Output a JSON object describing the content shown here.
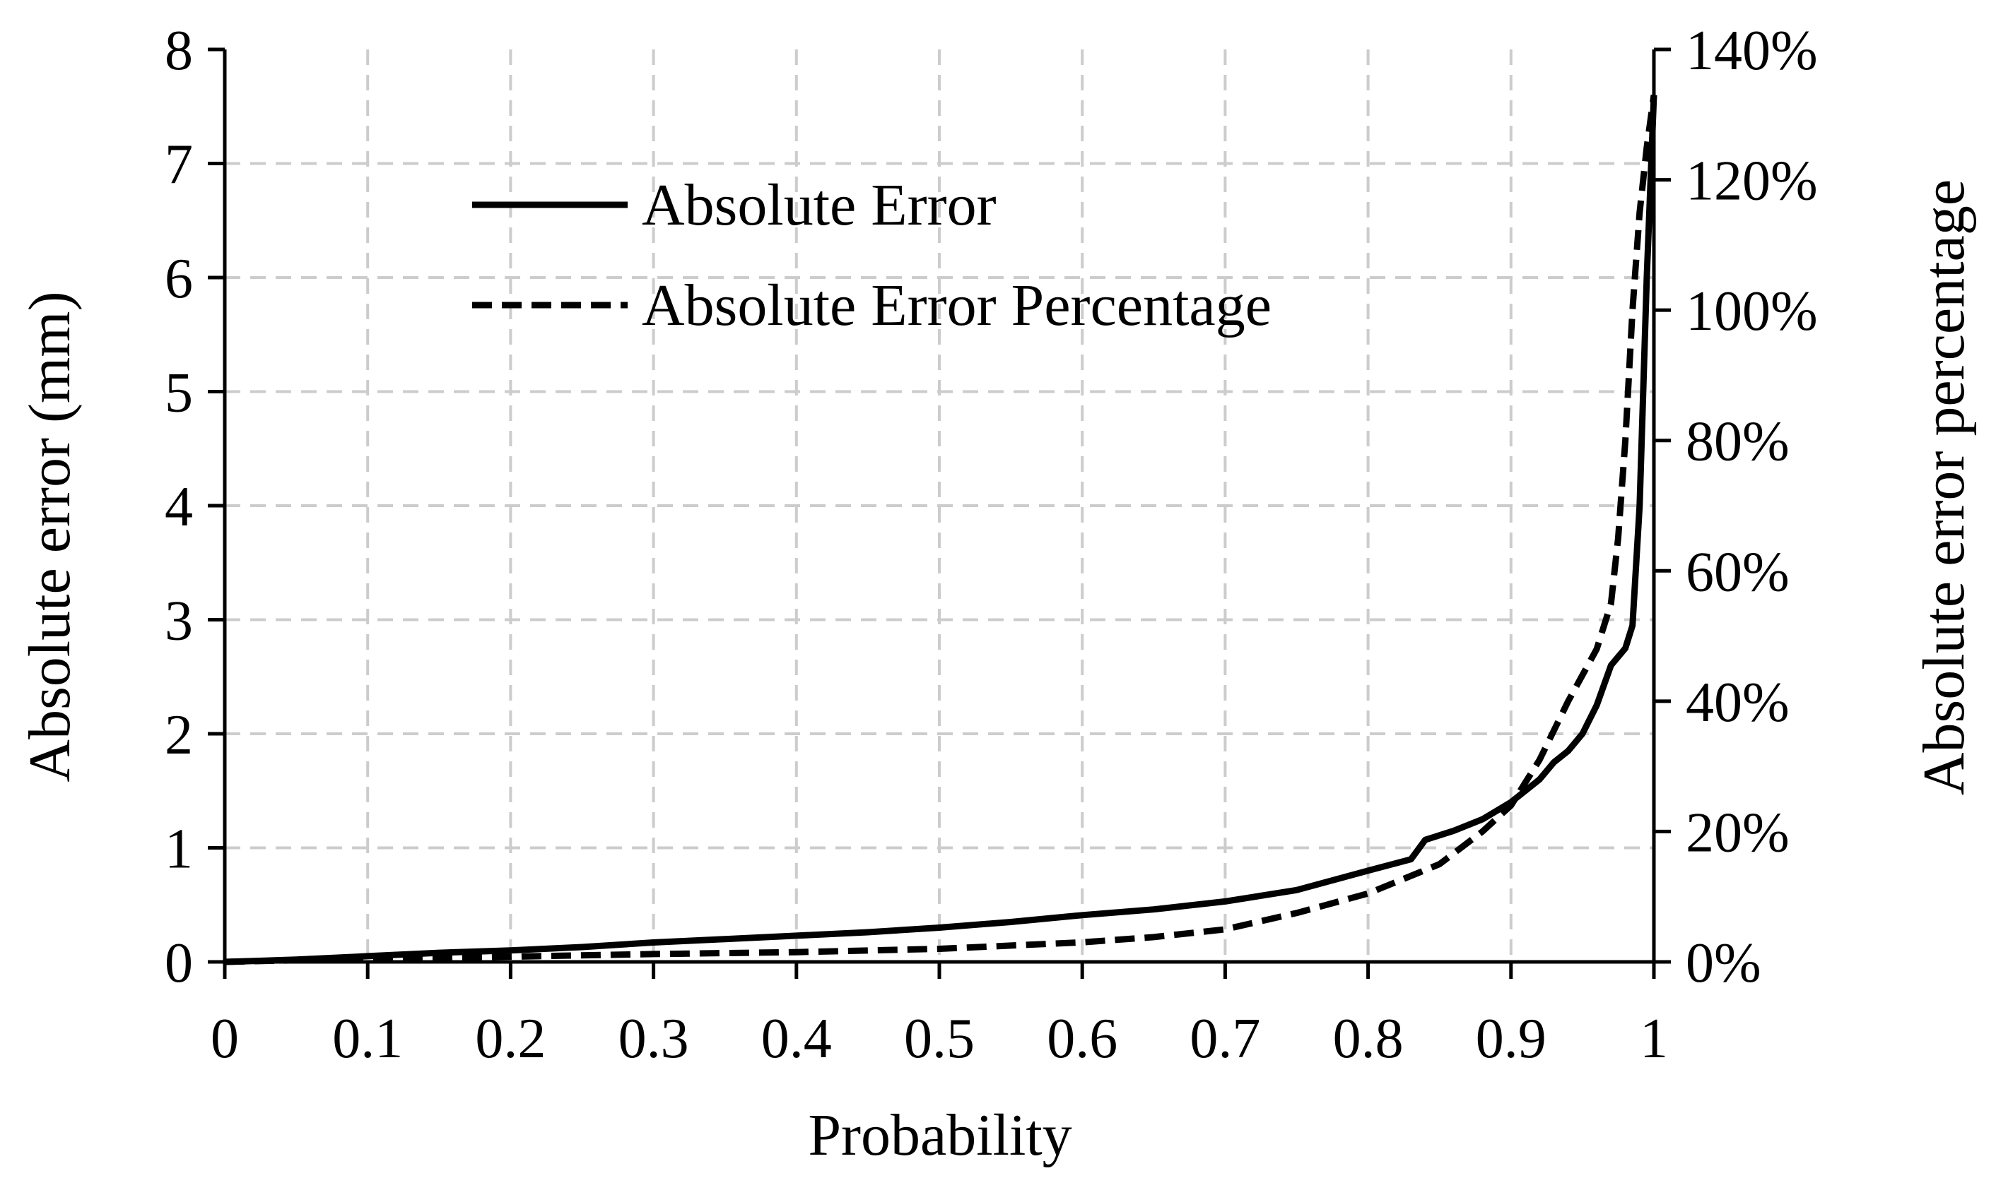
{
  "chart_data": {
    "type": "line",
    "title": "",
    "xlabel": "Probability",
    "ylabel": "Absolute error (mm)",
    "y2label": "Absolute error percentage",
    "xlim": [
      0,
      1
    ],
    "ylim": [
      0,
      8
    ],
    "y2lim": [
      0,
      140
    ],
    "xticks": [
      "0",
      "0.1",
      "0.2",
      "0.3",
      "0.4",
      "0.5",
      "0.6",
      "0.7",
      "0.8",
      "0.9",
      "1"
    ],
    "yticks": [
      "0",
      "1",
      "2",
      "3",
      "4",
      "5",
      "6",
      "7",
      "8"
    ],
    "y2ticks": [
      "0%",
      "20%",
      "40%",
      "60%",
      "80%",
      "100%",
      "120%",
      "140%"
    ],
    "grid": true,
    "legend_position": "top-left",
    "series": [
      {
        "name": "Absolute Error",
        "axis": "left",
        "style": "solid",
        "x": [
          0,
          0.05,
          0.1,
          0.15,
          0.2,
          0.25,
          0.3,
          0.35,
          0.4,
          0.45,
          0.5,
          0.55,
          0.6,
          0.65,
          0.7,
          0.75,
          0.8,
          0.83,
          0.84,
          0.86,
          0.88,
          0.9,
          0.92,
          0.93,
          0.94,
          0.95,
          0.96,
          0.97,
          0.98,
          0.985,
          0.99,
          0.995,
          1.0
        ],
        "y": [
          0,
          0.02,
          0.05,
          0.08,
          0.1,
          0.13,
          0.17,
          0.2,
          0.23,
          0.26,
          0.3,
          0.35,
          0.41,
          0.46,
          0.53,
          0.63,
          0.8,
          0.9,
          1.07,
          1.15,
          1.25,
          1.4,
          1.6,
          1.75,
          1.85,
          2.0,
          2.25,
          2.6,
          2.75,
          2.95,
          4.0,
          6.0,
          7.6
        ]
      },
      {
        "name": "Absolute Error Percentage",
        "axis": "right",
        "style": "dashed",
        "x": [
          0,
          0.1,
          0.2,
          0.3,
          0.4,
          0.5,
          0.55,
          0.6,
          0.65,
          0.7,
          0.75,
          0.8,
          0.85,
          0.88,
          0.9,
          0.92,
          0.94,
          0.96,
          0.97,
          0.975,
          0.98,
          0.985,
          0.99,
          0.995,
          1.0
        ],
        "y": [
          0,
          0.5,
          0.8,
          1.2,
          1.5,
          2.0,
          2.5,
          3.0,
          3.8,
          5.0,
          7.5,
          10.5,
          15.0,
          20.0,
          24.0,
          31.0,
          40.0,
          48.0,
          55.0,
          65.0,
          80.0,
          100.0,
          115.0,
          125.0,
          133.0
        ]
      }
    ]
  }
}
